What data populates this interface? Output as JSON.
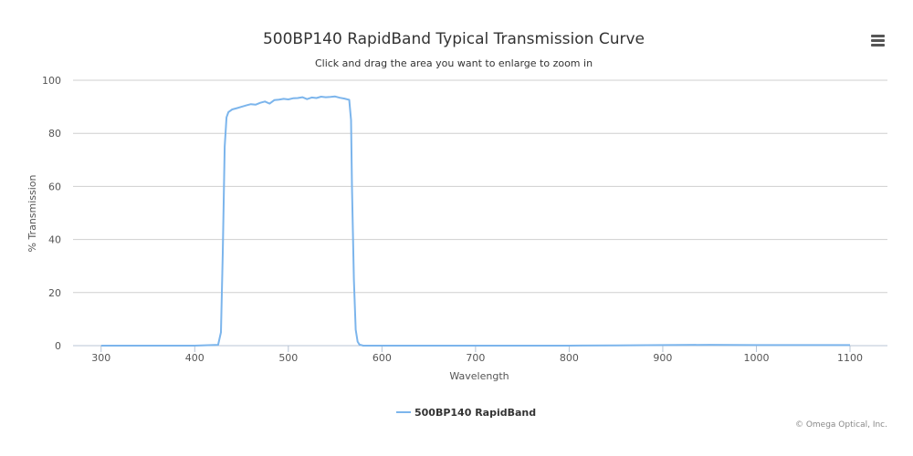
{
  "chart_data": {
    "type": "line",
    "title": "500BP140 RapidBand Typical Transmission Curve",
    "subtitle": "Click and drag the area you want to enlarge to zoom in",
    "xlabel": "Wavelength",
    "ylabel": "% Transmission",
    "xlim": [
      270,
      1140
    ],
    "ylim": [
      0,
      100
    ],
    "x_ticks": [
      300,
      400,
      500,
      600,
      700,
      800,
      900,
      1000,
      1100
    ],
    "y_ticks": [
      0,
      20,
      40,
      60,
      80,
      100
    ],
    "grid": true,
    "legend": "bottom-center",
    "series": [
      {
        "name": "500BP140 RapidBand",
        "color": "#7cb5ec",
        "x": [
          300,
          400,
          425,
          428,
          430,
          432,
          434,
          436,
          440,
          445,
          450,
          455,
          460,
          465,
          470,
          475,
          480,
          485,
          490,
          495,
          500,
          505,
          510,
          515,
          520,
          525,
          530,
          535,
          540,
          545,
          550,
          555,
          560,
          565,
          567,
          568,
          570,
          572,
          574,
          576,
          580,
          600,
          700,
          800,
          850,
          900,
          950,
          1000,
          1050,
          1100
        ],
        "y": [
          0,
          0,
          0.3,
          5,
          35,
          75,
          86,
          88,
          89,
          89.5,
          90,
          90.5,
          91,
          90.8,
          91.5,
          92,
          91.2,
          92.5,
          92.7,
          93,
          92.8,
          93.2,
          93.3,
          93.6,
          92.9,
          93.5,
          93.3,
          93.8,
          93.6,
          93.7,
          93.9,
          93.4,
          93.1,
          92.6,
          85,
          60,
          25,
          6,
          1.5,
          0.4,
          0,
          0,
          0,
          0,
          0.1,
          0.2,
          0.3,
          0.2,
          0.2,
          0.2
        ]
      }
    ]
  },
  "credits": "© Omega Optical, Inc.",
  "menu_icon": "hamburger-menu-icon"
}
